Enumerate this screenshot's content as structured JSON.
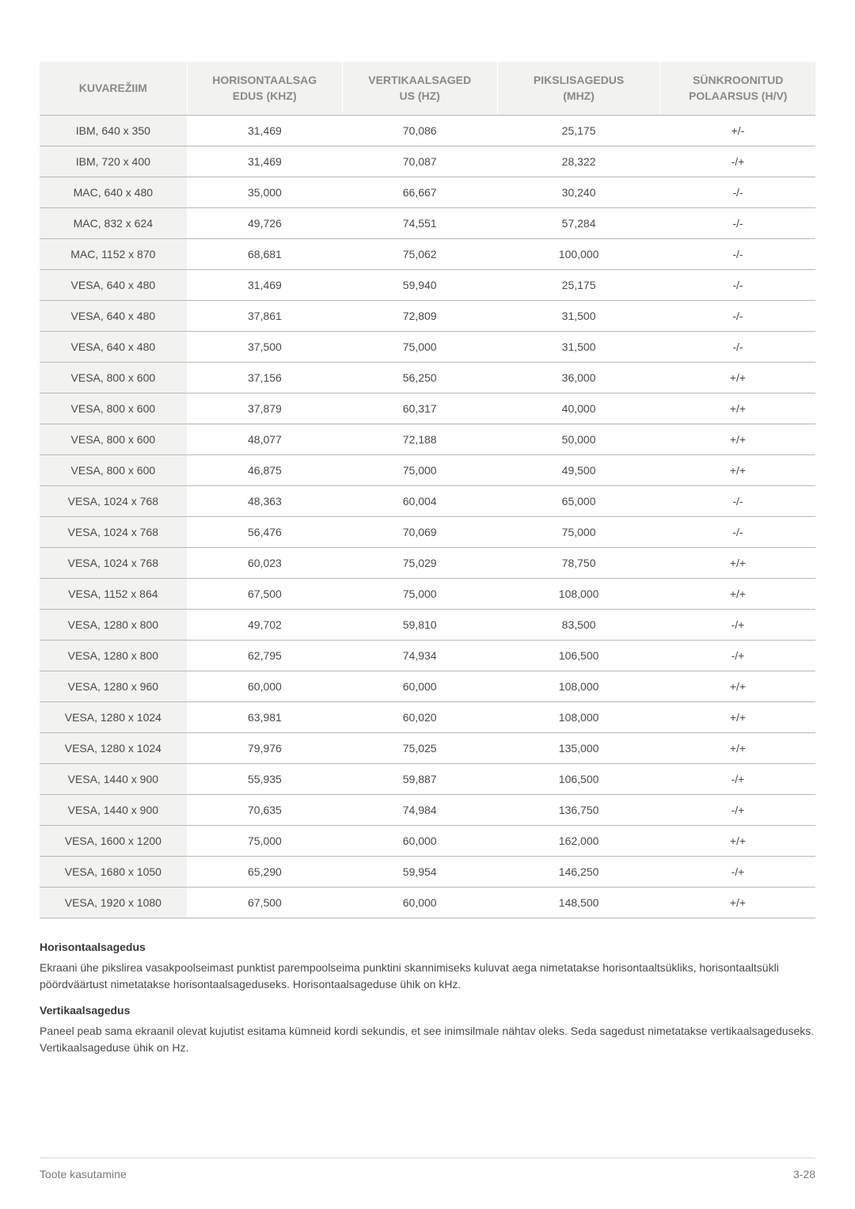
{
  "table": {
    "headers": {
      "mode": "KUVAREŽIIM",
      "horiz": "HORISONTAALSAG\nEDUS (KHZ)",
      "vert": "VERTIKAALSAGED\nUS (HZ)",
      "pixel": "PIKSLISAGEDUS\n(MHZ)",
      "sync": "SÜNKROONITUD\nPOLAARSUS (H/V)"
    },
    "header_bg": "#f2f2f0",
    "header_color": "#8a8a88",
    "header_fontsize": 14,
    "border_color": "#b8b8b6",
    "cell_fontsize": 14,
    "cell_color": "#4a4a4a",
    "first_col_bg": "#f2f2f0",
    "rows": [
      [
        "IBM, 640 x 350",
        "31,469",
        "70,086",
        "25,175",
        "+/-"
      ],
      [
        "IBM, 720 x 400",
        "31,469",
        "70,087",
        "28,322",
        "-/+"
      ],
      [
        "MAC, 640 x 480",
        "35,000",
        "66,667",
        "30,240",
        "-/-"
      ],
      [
        "MAC, 832 x 624",
        "49,726",
        "74,551",
        "57,284",
        "-/-"
      ],
      [
        "MAC, 1152 x 870",
        "68,681",
        "75,062",
        "100,000",
        "-/-"
      ],
      [
        "VESA, 640 x 480",
        "31,469",
        "59,940",
        "25,175",
        "-/-"
      ],
      [
        "VESA, 640 x 480",
        "37,861",
        "72,809",
        "31,500",
        "-/-"
      ],
      [
        "VESA, 640 x 480",
        "37,500",
        "75,000",
        "31,500",
        "-/-"
      ],
      [
        "VESA, 800 x 600",
        "37,156",
        "56,250",
        "36,000",
        "+/+"
      ],
      [
        "VESA, 800 x 600",
        "37,879",
        "60,317",
        "40,000",
        "+/+"
      ],
      [
        "VESA, 800 x 600",
        "48,077",
        "72,188",
        "50,000",
        "+/+"
      ],
      [
        "VESA, 800 x 600",
        "46,875",
        "75,000",
        "49,500",
        "+/+"
      ],
      [
        "VESA, 1024 x 768",
        "48,363",
        "60,004",
        "65,000",
        "-/-"
      ],
      [
        "VESA, 1024 x 768",
        "56,476",
        "70,069",
        "75,000",
        "-/-"
      ],
      [
        "VESA, 1024 x 768",
        "60,023",
        "75,029",
        "78,750",
        "+/+"
      ],
      [
        "VESA, 1152 x 864",
        "67,500",
        "75,000",
        "108,000",
        "+/+"
      ],
      [
        "VESA, 1280 x 800",
        "49,702",
        "59,810",
        "83,500",
        "-/+"
      ],
      [
        "VESA, 1280 x 800",
        "62,795",
        "74,934",
        "106,500",
        "-/+"
      ],
      [
        "VESA, 1280 x 960",
        "60,000",
        "60,000",
        "108,000",
        "+/+"
      ],
      [
        "VESA, 1280 x 1024",
        "63,981",
        "60,020",
        "108,000",
        "+/+"
      ],
      [
        "VESA, 1280 x 1024",
        "79,976",
        "75,025",
        "135,000",
        "+/+"
      ],
      [
        "VESA, 1440 x 900",
        "55,935",
        "59,887",
        "106,500",
        "-/+"
      ],
      [
        "VESA, 1440 x 900",
        "70,635",
        "74,984",
        "136,750",
        "-/+"
      ],
      [
        "VESA, 1600 x 1200",
        "75,000",
        "60,000",
        "162,000",
        "+/+"
      ],
      [
        "VESA, 1680 x 1050",
        "65,290",
        "59,954",
        "146,250",
        "-/+"
      ],
      [
        "VESA, 1920 x 1080",
        "67,500",
        "60,000",
        "148,500",
        "+/+"
      ]
    ]
  },
  "sections": {
    "horiz": {
      "title": "Horisontaalsagedus",
      "body": "Ekraani ühe pikslirea vasakpoolseimast punktist parempoolseima punktini skannimiseks kuluvat aega nimetatakse horisontaaltsükliks, horisontaaltsükli pöördväärtust nimetatakse horisontaalsageduseks. Horisontaalsageduse ühik on kHz."
    },
    "vert": {
      "title": "Vertikaalsagedus",
      "body": "Paneel peab sama ekraanil olevat kujutist esitama kümneid kordi sekundis, et see inimsilmale nähtav oleks. Seda sagedust nimetatakse vertikaalsageduseks. Vertikaalsageduse ühik on Hz."
    }
  },
  "footer": {
    "left": "Toote kasutamine",
    "right": "3-28"
  }
}
